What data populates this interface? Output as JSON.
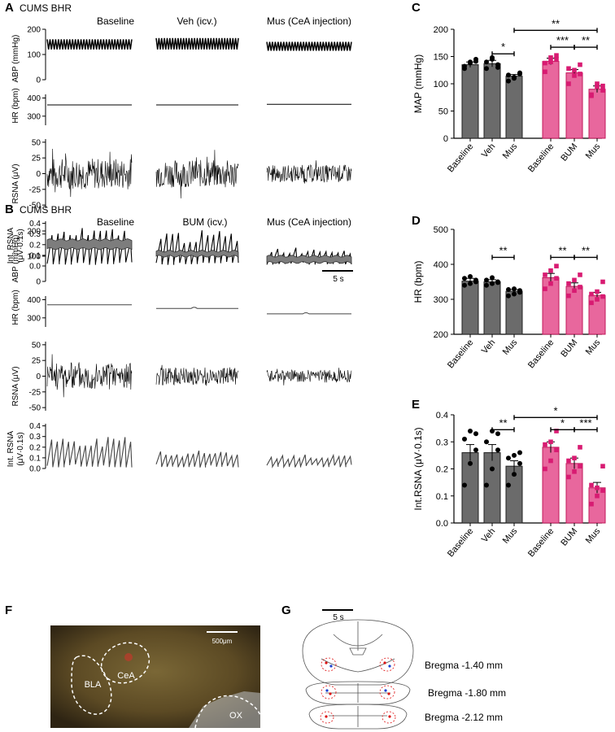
{
  "panel_letters": [
    "A",
    "B",
    "C",
    "D",
    "E",
    "F",
    "G"
  ],
  "panel_a": {
    "title": "CUMS BHR",
    "conditions": [
      "Baseline",
      "Veh (icv.)",
      "Mus (CeA injection)"
    ],
    "traces": [
      {
        "label": "ABP (mmHg)",
        "ticks": [
          "200",
          "100",
          "0"
        ]
      },
      {
        "label": "HR (bpm)",
        "ticks": [
          "400",
          "300"
        ]
      },
      {
        "label": "RSNA (μV)",
        "ticks": [
          "50",
          "25",
          "0",
          "-25",
          "-50"
        ]
      },
      {
        "label": "Int. RSNA",
        "label2": "(μV·0.1s)",
        "ticks": [
          "0.4",
          "0.3",
          "0.2",
          "0.1",
          "0.0"
        ]
      }
    ],
    "scale_bar": "5 s"
  },
  "panel_b": {
    "title": "CUMS BHR",
    "conditions": [
      "Baseline",
      "BUM (icv.)",
      "Mus (CeA injection)"
    ],
    "traces": [
      {
        "label": "ABP (mmHg)",
        "ticks": [
          "200",
          "100",
          "0"
        ]
      },
      {
        "label": "HR (bpm)",
        "ticks": [
          "400",
          "300"
        ]
      },
      {
        "label": "RSNA (μV)",
        "ticks": [
          "50",
          "25",
          "0",
          "-25",
          "-50"
        ]
      },
      {
        "label": "Int. RSNA",
        "label2": "(μV·0.1s)",
        "ticks": [
          "0.4",
          "0.3",
          "0.2",
          "0.1",
          "0.0"
        ]
      }
    ],
    "scale_bar": "5 s"
  },
  "colors": {
    "group1": "#6b6b6b",
    "group2": "#e8679d",
    "dots2": "#d81b72",
    "trace": "#000000",
    "trace_b": "#555555"
  },
  "chart_data": [
    {
      "panel": "C",
      "type": "bar",
      "ylabel": "MAP (mmHg)",
      "ylim": [
        0,
        200
      ],
      "yticks": [
        "0",
        "50",
        "100",
        "150",
        "200"
      ],
      "categories": [
        "Baseline",
        "Veh",
        "Mus",
        "Baseline",
        "BUM",
        "Mus"
      ],
      "values": [
        135,
        137,
        114,
        141,
        120,
        90
      ],
      "errors": [
        5,
        6,
        3,
        6,
        6,
        6
      ],
      "points": [
        [
          128,
          140,
          145,
          132,
          138,
          141
        ],
        [
          128,
          145,
          130,
          140,
          148,
          135
        ],
        [
          105,
          112,
          120,
          116,
          110,
          118
        ],
        [
          122,
          148,
          145,
          138,
          140,
          152
        ],
        [
          100,
          125,
          118,
          128,
          115,
          135
        ],
        [
          78,
          95,
          88,
          80,
          100,
          96
        ]
      ],
      "significance": [
        {
          "from": 1,
          "to": 2,
          "label": "*",
          "y": 155
        },
        {
          "from": 2,
          "to": 5,
          "label": "**",
          "y": 198
        },
        {
          "from": 3,
          "to": 4,
          "label": "***",
          "y": 167
        },
        {
          "from": 4,
          "to": 5,
          "label": "**",
          "y": 167
        }
      ]
    },
    {
      "panel": "D",
      "type": "bar",
      "ylabel": "HR (bpm)",
      "ylim": [
        200,
        500
      ],
      "yticks": [
        "200",
        "300",
        "400",
        "500"
      ],
      "categories": [
        "Baseline",
        "Veh",
        "Mus",
        "Baseline",
        "BUM",
        "Mus"
      ],
      "values": [
        352,
        350,
        323,
        362,
        337,
        311
      ],
      "errors": [
        8,
        6,
        5,
        12,
        10,
        9
      ],
      "points": [
        [
          340,
          345,
          355,
          360,
          365,
          350
        ],
        [
          340,
          345,
          350,
          355,
          362,
          348
        ],
        [
          310,
          315,
          325,
          328,
          330,
          320
        ],
        [
          330,
          345,
          360,
          370,
          382,
          395
        ],
        [
          310,
          325,
          335,
          345,
          355,
          370
        ],
        [
          290,
          300,
          308,
          315,
          322,
          350
        ]
      ],
      "significance": [
        {
          "from": 1,
          "to": 2,
          "label": "**",
          "y": 420
        },
        {
          "from": 3,
          "to": 4,
          "label": "**",
          "y": 420
        },
        {
          "from": 4,
          "to": 5,
          "label": "**",
          "y": 420
        }
      ]
    },
    {
      "panel": "E",
      "type": "bar",
      "ylabel": "Int.RSNA (μV·0.1s)",
      "ylim": [
        0,
        0.4
      ],
      "yticks": [
        "0.0",
        "0.1",
        "0.2",
        "0.3",
        "0.4"
      ],
      "categories": [
        "Baseline",
        "Veh",
        "Mus",
        "Baseline",
        "BUM",
        "Mus"
      ],
      "values": [
        0.26,
        0.26,
        0.21,
        0.28,
        0.22,
        0.13
      ],
      "errors": [
        0.03,
        0.03,
        0.02,
        0.02,
        0.02,
        0.02
      ],
      "points": [
        [
          0.14,
          0.22,
          0.27,
          0.31,
          0.34,
          0.33
        ],
        [
          0.14,
          0.2,
          0.27,
          0.3,
          0.34,
          0.33
        ],
        [
          0.14,
          0.18,
          0.22,
          0.24,
          0.25,
          0.26
        ],
        [
          0.2,
          0.23,
          0.27,
          0.29,
          0.3,
          0.34
        ],
        [
          0.17,
          0.19,
          0.21,
          0.23,
          0.24,
          0.28
        ],
        [
          0.07,
          0.1,
          0.12,
          0.14,
          0.13,
          0.21
        ]
      ],
      "significance": [
        {
          "from": 1,
          "to": 2,
          "label": "**",
          "y": 0.345
        },
        {
          "from": 2,
          "to": 5,
          "label": "*",
          "y": 0.39
        },
        {
          "from": 3,
          "to": 4,
          "label": "*",
          "y": 0.345
        },
        {
          "from": 4,
          "to": 5,
          "label": "***",
          "y": 0.345
        }
      ]
    }
  ],
  "panel_f": {
    "labels": [
      "CeA",
      "BLA",
      "OX"
    ],
    "scale": "500μm"
  },
  "panel_g": {
    "levels": [
      "Bregma -1.40 mm",
      "Bregma -1.80 mm",
      "Bregma -2.12 mm"
    ]
  }
}
